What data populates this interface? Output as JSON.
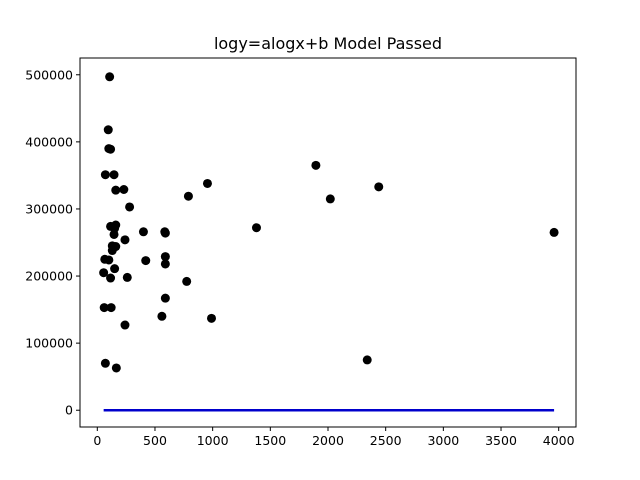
{
  "chart_data": {
    "type": "scatter",
    "title": "logy=alogx+b Model Passed",
    "xlabel": "",
    "ylabel": "",
    "xlim": [
      -150,
      4150
    ],
    "ylim": [
      -25000,
      525000
    ],
    "x_ticks": [
      0,
      500,
      1000,
      1500,
      2000,
      2500,
      3000,
      3500,
      4000
    ],
    "y_ticks": [
      0,
      100000,
      200000,
      300000,
      400000,
      500000
    ],
    "grid": false,
    "legend": "none",
    "colors": {
      "points": "#000000",
      "fit_line": "#0000cc"
    },
    "series": [
      {
        "kind": "points",
        "points": [
          [
            107,
            497000
          ],
          [
            95,
            418000
          ],
          [
            100,
            390000
          ],
          [
            115,
            389000
          ],
          [
            70,
            351000
          ],
          [
            145,
            351000
          ],
          [
            160,
            328000
          ],
          [
            230,
            329000
          ],
          [
            280,
            303000
          ],
          [
            115,
            274000
          ],
          [
            160,
            276000
          ],
          [
            150,
            271000
          ],
          [
            145,
            262000
          ],
          [
            240,
            254000
          ],
          [
            130,
            245000
          ],
          [
            160,
            244000
          ],
          [
            130,
            238000
          ],
          [
            65,
            225000
          ],
          [
            100,
            224000
          ],
          [
            150,
            211000
          ],
          [
            55,
            205000
          ],
          [
            115,
            197000
          ],
          [
            260,
            198000
          ],
          [
            60,
            153000
          ],
          [
            120,
            153000
          ],
          [
            240,
            127000
          ],
          [
            70,
            70000
          ],
          [
            165,
            63000
          ],
          [
            400,
            266000
          ],
          [
            420,
            223000
          ],
          [
            585,
            266000
          ],
          [
            590,
            264000
          ],
          [
            590,
            229000
          ],
          [
            590,
            218000
          ],
          [
            590,
            167000
          ],
          [
            560,
            140000
          ],
          [
            790,
            319000
          ],
          [
            775,
            192000
          ],
          [
            955,
            338000
          ],
          [
            990,
            137000
          ],
          [
            1380,
            272000
          ],
          [
            1895,
            365000
          ],
          [
            2020,
            315000
          ],
          [
            2440,
            333000
          ],
          [
            2340,
            75000
          ],
          [
            3960,
            265000
          ]
        ]
      },
      {
        "kind": "line",
        "points": [
          [
            55,
            0
          ],
          [
            3960,
            0
          ]
        ]
      }
    ]
  }
}
